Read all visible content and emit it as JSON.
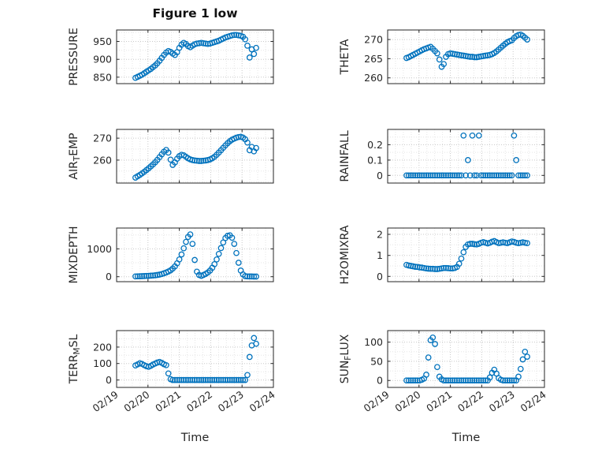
{
  "chart_data": {
    "type": "scatter",
    "title": "Figure 1 low",
    "xlabel": "Time",
    "marker": {
      "shape": "open-circle",
      "color": "#0072BD",
      "radius": 3.2
    },
    "axis_color": "#262626",
    "grid": {
      "on": true,
      "style": "dotted",
      "major_color": "#c8c8c8",
      "minor_color": "#e5e5e5",
      "x_minor_step": 0.25
    },
    "xlim": [
      0,
      5
    ],
    "xticks": [
      0,
      1,
      2,
      3,
      4,
      5
    ],
    "xtick_labels": [
      "02/19",
      "02/20",
      "02/21",
      "02/22",
      "02/23",
      "02/24"
    ],
    "x": [
      0.6,
      0.67,
      0.74,
      0.81,
      0.88,
      0.95,
      1.02,
      1.09,
      1.16,
      1.23,
      1.3,
      1.37,
      1.44,
      1.51,
      1.58,
      1.65,
      1.72,
      1.79,
      1.86,
      1.93,
      2,
      2.07,
      2.14,
      2.21,
      2.28,
      2.35,
      2.42,
      2.49,
      2.56,
      2.63,
      2.7,
      2.77,
      2.84,
      2.91,
      2.98,
      3.05,
      3.12,
      3.19,
      3.26,
      3.33,
      3.4,
      3.47,
      3.54,
      3.61,
      3.68,
      3.75,
      3.82,
      3.89,
      3.96,
      4.03,
      4.1,
      4.17,
      4.24,
      4.31,
      4.38,
      4.45
    ],
    "subplots": [
      {
        "name": "PRESSURE",
        "ylabel": {
          "pre": "PRESSURE",
          "sub": "",
          "post": ""
        },
        "ylim": [
          832,
          982
        ],
        "yticks": [
          850,
          900,
          950
        ],
        "y": [
          848,
          851,
          854,
          857,
          861,
          865,
          869,
          873,
          878,
          883,
          889,
          896,
          904,
          912,
          919,
          923,
          921,
          916,
          912,
          920,
          932,
          941,
          946,
          943,
          937,
          934,
          938,
          942,
          944,
          945,
          946,
          945,
          944,
          943,
          944,
          946,
          948,
          950,
          952,
          955,
          958,
          961,
          963,
          965,
          967,
          968,
          968,
          967,
          966,
          963,
          956,
          938,
          905,
          928,
          915,
          932
        ]
      },
      {
        "name": "THETA",
        "ylabel": {
          "pre": "THETA",
          "sub": "",
          "post": ""
        },
        "ylim": [
          258.5,
          272.5
        ],
        "yticks": [
          260,
          265,
          270
        ],
        "y": [
          265.2,
          265.4,
          265.7,
          266,
          266.3,
          266.6,
          266.9,
          267.2,
          267.5,
          267.7,
          267.9,
          268.1,
          267.6,
          267,
          266.4,
          264.8,
          262.9,
          263.6,
          265.5,
          266.2,
          266.4,
          266.3,
          266.2,
          266.1,
          266,
          265.9,
          265.8,
          265.7,
          265.6,
          265.5,
          265.5,
          265.4,
          265.4,
          265.5,
          265.6,
          265.7,
          265.8,
          265.9,
          266,
          266.2,
          266.5,
          266.9,
          267.4,
          267.9,
          268.4,
          268.9,
          269.3,
          269.6,
          269.8,
          270.4,
          270.9,
          271.2,
          271.3,
          271,
          270.5,
          270
        ]
      },
      {
        "name": "AIR_TEMP",
        "ylabel": {
          "pre": "AIR",
          "sub": "T",
          "post": "EMP"
        },
        "ylim": [
          249.5,
          274
        ],
        "yticks": [
          260,
          270
        ],
        "y": [
          252,
          252.6,
          253.2,
          253.9,
          254.6,
          255.4,
          256.2,
          257.1,
          258,
          259,
          260.1,
          261.3,
          262.6,
          263.8,
          264.6,
          263.4,
          260.2,
          257.8,
          258.9,
          260.6,
          261.8,
          262.4,
          262.2,
          261.5,
          260.8,
          260.3,
          260,
          259.8,
          259.7,
          259.6,
          259.6,
          259.7,
          259.8,
          260,
          260.3,
          260.8,
          261.5,
          262.4,
          263.4,
          264.5,
          265.6,
          266.7,
          267.7,
          268.6,
          269.3,
          269.8,
          270.2,
          270.5,
          270.6,
          270.3,
          269.5,
          268,
          264.5,
          266,
          264,
          265.5
        ]
      },
      {
        "name": "RAINFALL",
        "ylabel": {
          "pre": "RAINFALL",
          "sub": "",
          "post": ""
        },
        "ylim": [
          -0.05,
          0.3
        ],
        "yticks": [
          0,
          0.1,
          0.2
        ],
        "y": [
          0,
          0,
          0,
          0,
          0,
          0,
          0,
          0,
          0,
          0,
          0,
          0,
          0,
          0,
          0,
          0,
          0,
          0,
          0,
          0,
          0,
          0,
          0,
          0,
          0,
          0,
          0.26,
          0,
          0.1,
          0,
          0.26,
          0,
          0,
          0.26,
          0,
          0,
          0,
          0,
          0,
          0,
          0,
          0,
          0,
          0,
          0,
          0,
          0,
          0,
          0,
          0.26,
          0.1,
          0,
          0,
          0,
          0,
          0
        ]
      },
      {
        "name": "MIXDEPTH",
        "ylabel": {
          "pre": "MIXDEPTH",
          "sub": "",
          "post": ""
        },
        "ylim": [
          -180,
          1750
        ],
        "yticks": [
          0,
          1000
        ],
        "y": [
          10,
          12,
          15,
          18,
          22,
          26,
          30,
          35,
          42,
          50,
          60,
          75,
          95,
          120,
          150,
          185,
          230,
          290,
          370,
          480,
          620,
          800,
          1020,
          1250,
          1430,
          1520,
          1180,
          600,
          180,
          60,
          30,
          60,
          100,
          150,
          220,
          320,
          450,
          620,
          820,
          1030,
          1230,
          1390,
          1470,
          1490,
          1400,
          1180,
          850,
          500,
          220,
          80,
          20,
          10,
          8,
          6,
          5,
          5
        ]
      },
      {
        "name": "H2OMIXRA",
        "ylabel": {
          "pre": "H2OMIXRA",
          "sub": "",
          "post": ""
        },
        "ylim": [
          -0.25,
          2.3
        ],
        "yticks": [
          0,
          1,
          2
        ],
        "y": [
          0.55,
          0.52,
          0.5,
          0.48,
          0.46,
          0.45,
          0.43,
          0.42,
          0.4,
          0.38,
          0.37,
          0.36,
          0.36,
          0.35,
          0.35,
          0.36,
          0.38,
          0.4,
          0.4,
          0.39,
          0.38,
          0.38,
          0.4,
          0.45,
          0.6,
          0.85,
          1.15,
          1.4,
          1.52,
          1.55,
          1.55,
          1.53,
          1.52,
          1.55,
          1.6,
          1.63,
          1.6,
          1.57,
          1.6,
          1.65,
          1.68,
          1.63,
          1.58,
          1.6,
          1.62,
          1.6,
          1.58,
          1.62,
          1.66,
          1.64,
          1.6,
          1.58,
          1.6,
          1.62,
          1.6,
          1.58
        ]
      },
      {
        "name": "TERR_MSL",
        "ylabel": {
          "pre": "TERR",
          "sub": "M",
          "post": "SL"
        },
        "ylim": [
          -45,
          300
        ],
        "yticks": [
          0,
          100,
          200
        ],
        "y": [
          88,
          95,
          102,
          98,
          90,
          84,
          80,
          86,
          94,
          100,
          106,
          110,
          104,
          96,
          90,
          40,
          5,
          0,
          0,
          0,
          0,
          0,
          0,
          0,
          0,
          0,
          0,
          0,
          0,
          0,
          0,
          0,
          0,
          0,
          0,
          0,
          0,
          0,
          0,
          0,
          0,
          0,
          0,
          0,
          0,
          0,
          0,
          0,
          0,
          0,
          0,
          30,
          140,
          210,
          255,
          220
        ]
      },
      {
        "name": "SUN_FLUX",
        "ylabel": {
          "pre": "SUN",
          "sub": "F",
          "post": "LUX"
        },
        "ylim": [
          -18,
          130
        ],
        "yticks": [
          0,
          50,
          100
        ],
        "y": [
          0,
          0,
          0,
          0,
          0,
          0,
          0,
          2,
          5,
          15,
          60,
          105,
          112,
          95,
          35,
          10,
          3,
          0,
          0,
          0,
          0,
          0,
          0,
          0,
          0,
          0,
          0,
          0,
          0,
          0,
          0,
          0,
          0,
          0,
          0,
          0,
          0,
          0,
          8,
          20,
          28,
          18,
          6,
          2,
          0,
          0,
          0,
          0,
          0,
          0,
          0,
          10,
          30,
          55,
          75,
          62
        ]
      }
    ]
  }
}
